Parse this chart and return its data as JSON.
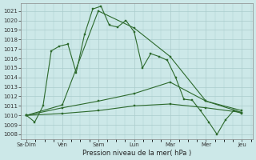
{
  "background_color": "#cce8e8",
  "grid_color": "#aacccc",
  "line_color": "#2d6a2d",
  "xlabel": "Pression niveau de la mer( hPa )",
  "ylim_low": 1007.5,
  "ylim_high": 1021.8,
  "yticks": [
    1008,
    1009,
    1010,
    1011,
    1012,
    1013,
    1014,
    1015,
    1016,
    1017,
    1018,
    1019,
    1020,
    1021
  ],
  "xtick_positions": [
    0,
    1,
    2,
    3,
    4,
    5,
    6
  ],
  "xtick_labels": [
    "Sa·Dim",
    "Ven",
    "Sam",
    "Lun",
    "Mar",
    "Mer",
    "Jeu"
  ],
  "line1_y": [
    1010.0,
    1009.3,
    1011.0,
    1016.8,
    1017.3,
    1017.5,
    1014.5,
    1018.5,
    1021.2,
    1021.5,
    1019.5,
    1019.3,
    1020.0,
    1018.8,
    1015.0,
    1016.5,
    1016.2,
    1015.8,
    1014.0,
    1011.7,
    1011.6,
    1010.5,
    1009.3,
    1008.0,
    1009.5,
    1010.5,
    1010.2
  ],
  "line2_y": [
    1010.0,
    1011.1,
    1021.0,
    1019.2,
    1016.2,
    1011.5,
    1010.3
  ],
  "line3_y": [
    1010.0,
    1010.8,
    1011.5,
    1012.3,
    1013.5,
    1011.5,
    1010.5
  ],
  "line4_y": [
    1010.0,
    1010.2,
    1010.5,
    1011.0,
    1011.2,
    1010.8,
    1010.3
  ]
}
